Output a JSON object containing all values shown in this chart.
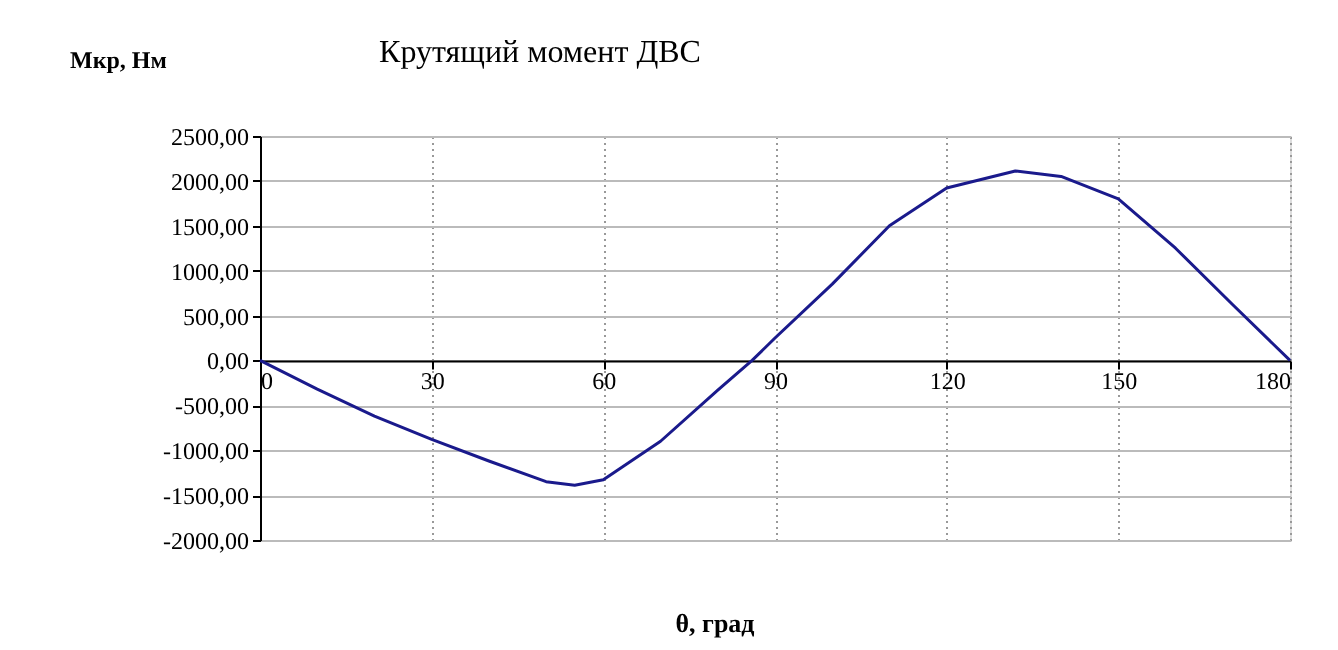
{
  "chart_data": {
    "type": "line",
    "title": "Крутящий момент ДВС",
    "ylabel": "Мкр, Нм",
    "xlabel": "θ, град",
    "x": [
      0,
      10,
      20,
      30,
      40,
      50,
      55,
      60,
      70,
      80,
      86,
      90,
      100,
      110,
      120,
      132,
      140,
      150,
      160,
      170,
      180
    ],
    "series": [
      {
        "color": "#1a1a8c",
        "values": [
          0,
          -320,
          -620,
          -880,
          -1120,
          -1350,
          -1390,
          -1330,
          -900,
          -330,
          0,
          250,
          850,
          1500,
          1920,
          2110,
          2050,
          1800,
          1250,
          620,
          0
        ]
      }
    ],
    "xlim": [
      0,
      180
    ],
    "xticks": [
      0,
      30,
      60,
      90,
      120,
      150,
      180
    ],
    "ylim": [
      -2000,
      2500
    ],
    "yticks": [
      {
        "value": 2500,
        "label": "2500,00"
      },
      {
        "value": 2000,
        "label": "2000,00"
      },
      {
        "value": 1500,
        "label": "1500,00"
      },
      {
        "value": 1000,
        "label": "1000,00"
      },
      {
        "value": 500,
        "label": "500,00"
      },
      {
        "value": 0,
        "label": "0,00"
      },
      {
        "value": -500,
        "label": "-500,00"
      },
      {
        "value": -1000,
        "label": "-1000,00"
      },
      {
        "value": -1500,
        "label": "-1500,00"
      },
      {
        "value": -2000,
        "label": "-2000,00"
      }
    ],
    "grid": true,
    "marker": "none",
    "line_style": "solid"
  }
}
